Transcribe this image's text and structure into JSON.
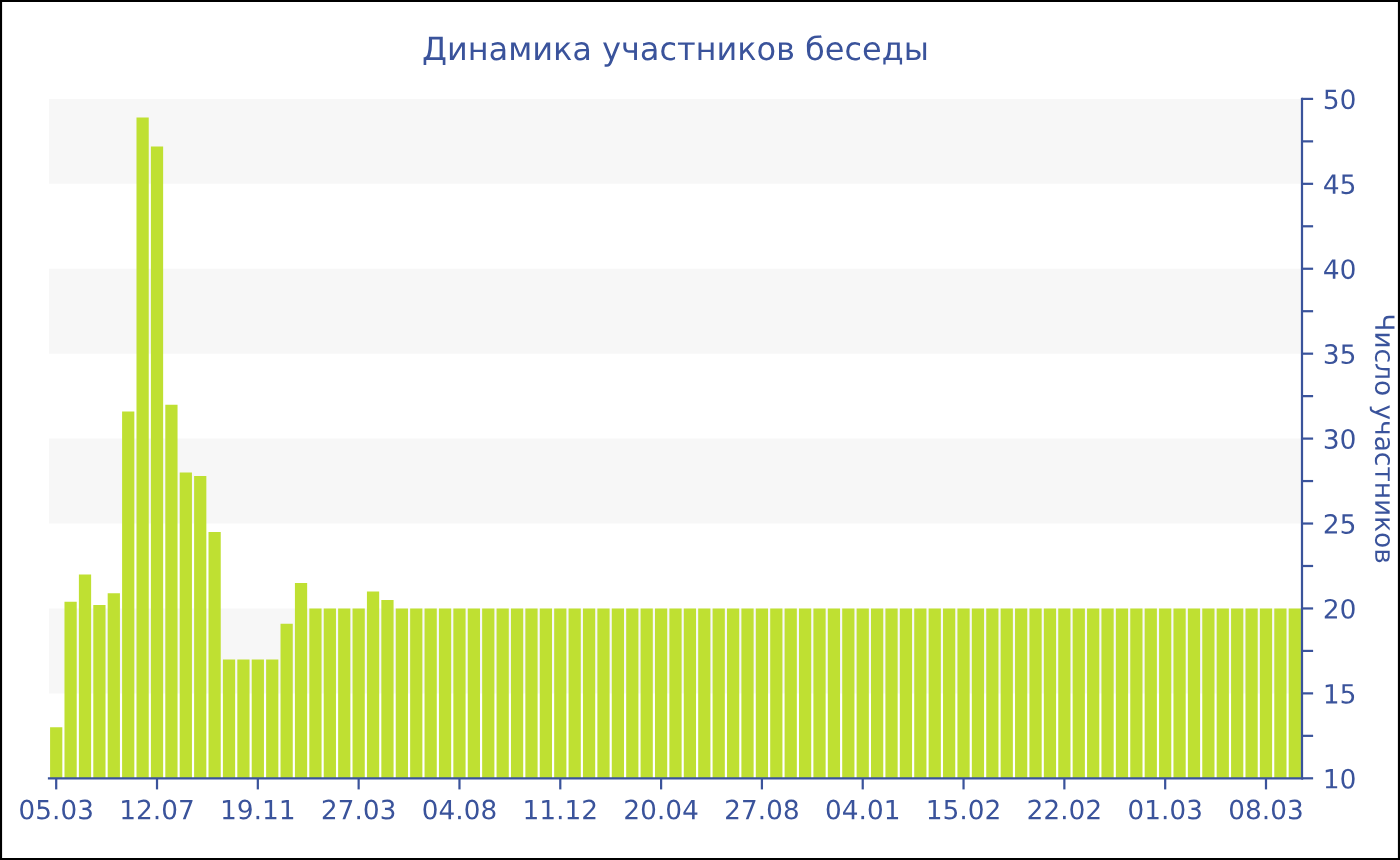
{
  "chart_data": {
    "type": "bar",
    "title": "Динамика участников беседы",
    "ylabel": "Число участников",
    "categories": [
      "05.03",
      null,
      null,
      null,
      null,
      null,
      null,
      "12.07",
      null,
      null,
      null,
      null,
      null,
      null,
      "19.11",
      null,
      null,
      null,
      null,
      null,
      null,
      "27.03",
      null,
      null,
      null,
      null,
      null,
      null,
      "04.08",
      null,
      null,
      null,
      null,
      null,
      null,
      "11.12",
      null,
      null,
      null,
      null,
      null,
      null,
      "20.04",
      null,
      null,
      null,
      null,
      null,
      null,
      "27.08",
      null,
      null,
      null,
      null,
      null,
      null,
      "04.01",
      null,
      null,
      null,
      null,
      null,
      null,
      "15.02",
      null,
      null,
      null,
      null,
      null,
      null,
      "22.02",
      null,
      null,
      null,
      null,
      null,
      null,
      "01.03",
      null,
      null,
      null,
      null,
      null,
      null,
      "08.03",
      null,
      null
    ],
    "values": [
      13.0,
      20.4,
      22.0,
      20.2,
      20.9,
      31.6,
      48.9,
      47.2,
      32.0,
      28.0,
      27.8,
      24.5,
      17.0,
      17.0,
      17.0,
      17.0,
      19.1,
      21.5,
      20,
      20,
      20,
      20,
      21.0,
      20.5,
      20,
      20,
      20,
      20,
      20,
      20,
      20,
      20,
      20,
      20,
      20,
      20,
      20,
      20,
      20,
      20,
      20,
      20,
      20,
      20,
      20,
      20,
      20,
      20,
      20,
      20,
      20,
      20,
      20,
      20,
      20,
      20,
      20,
      20,
      20,
      20,
      20,
      20,
      20,
      20,
      20,
      20,
      20,
      20,
      20,
      20,
      20,
      20,
      20,
      20,
      20,
      20,
      20,
      20,
      20,
      20,
      20,
      20,
      20,
      20,
      20,
      20,
      20
    ],
    "color": "#bfe032",
    "ylim": [
      10,
      50
    ],
    "yticks": [
      10,
      {
        "value": 12.5,
        "label": null
      },
      15,
      {
        "value": 17.5,
        "label": null
      },
      20,
      {
        "value": 22.5,
        "label": null
      },
      25,
      {
        "value": 27.5,
        "label": null
      },
      30,
      {
        "value": 32.5,
        "label": null
      },
      35,
      {
        "value": 37.5,
        "label": null
      },
      40,
      {
        "value": 42.5,
        "label": null
      },
      45,
      {
        "value": 47.5,
        "label": null
      },
      50
    ],
    "bands": [
      {
        "axis": "y",
        "from": 45,
        "to": 50,
        "color": "#f7f7f7"
      },
      {
        "axis": "y",
        "from": 35,
        "to": 40,
        "color": "#f7f7f7"
      },
      {
        "axis": "y",
        "from": 25,
        "to": 30,
        "color": "#f7f7f7"
      },
      {
        "axis": "y",
        "from": 15,
        "to": 20,
        "color": "#f7f7f7"
      }
    ],
    "grid": false,
    "legend": false
  }
}
